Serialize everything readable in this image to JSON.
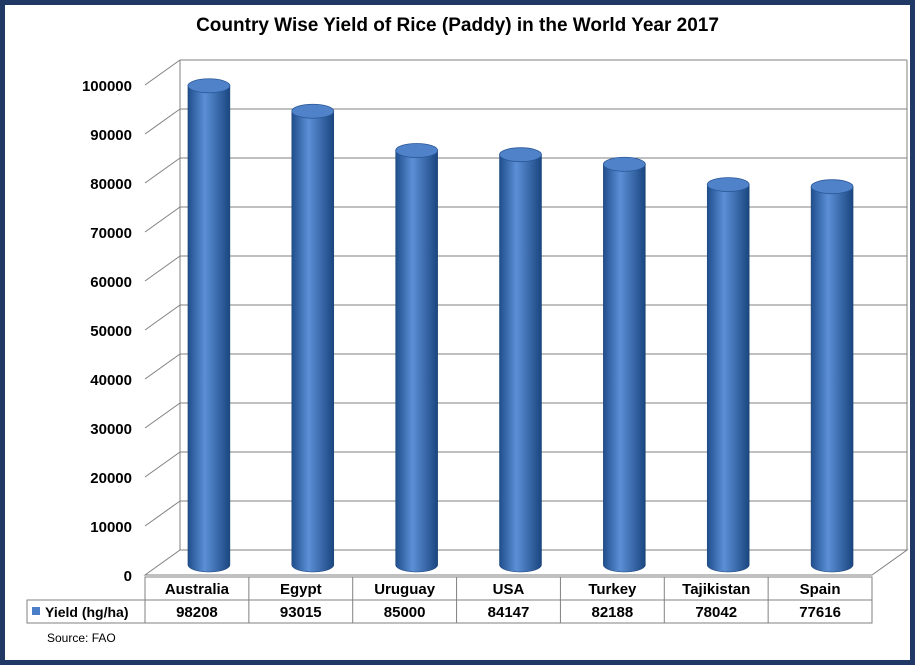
{
  "chart_data": {
    "type": "bar",
    "title": "Country Wise Yield of Rice (Paddy) in the World Year 2017",
    "categories": [
      "Australia",
      "Egypt",
      "Uruguay",
      "USA",
      "Turkey",
      "Tajikistan",
      "Spain"
    ],
    "series": [
      {
        "name": "Yield (hg/ha)",
        "values": [
          98208,
          93015,
          85000,
          84147,
          82188,
          78042,
          77616
        ],
        "color": "#4a7ec6"
      }
    ],
    "ylim": [
      0,
      100000
    ],
    "yticks": [
      "0",
      "10000",
      "20000",
      "30000",
      "40000",
      "50000",
      "60000",
      "70000",
      "80000",
      "90000",
      "100000"
    ],
    "grid": true,
    "legend": "data-table-left",
    "data_table": true
  },
  "source": "Source: FAO",
  "colors": {
    "frame": "#1f3864",
    "bar": "#4a7ec6"
  }
}
